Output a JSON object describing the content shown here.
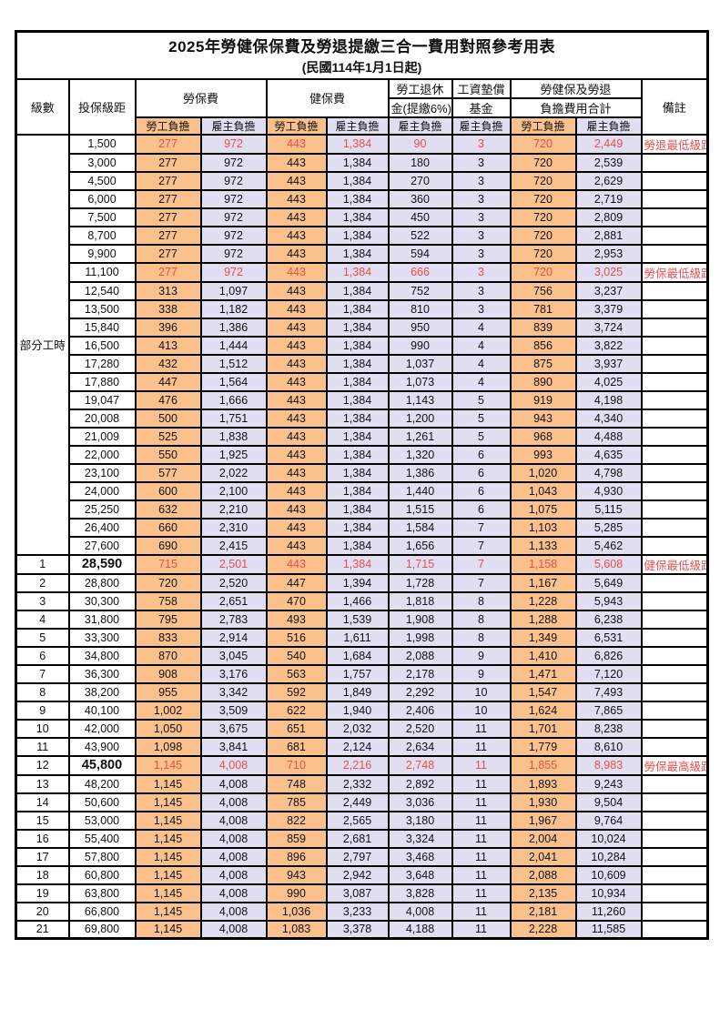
{
  "title": "2025年勞健保保費及勞退提繳三合一費用對照參考用表",
  "subtitle": "(民國114年1月1日起)",
  "header": {
    "level": "級數",
    "bracket": "投保級距",
    "labor_ins": "勞保費",
    "health_ins": "健保費",
    "pension_line1": "勞工退休",
    "pension_line2": "金(提繳6%)",
    "wage_fund_line1": "工資墊償",
    "wage_fund_line2": "基金",
    "total_line1": "勞健保及勞退",
    "total_line2": "負擔費用合計",
    "remark": "備註",
    "employee_share": "勞工負擔",
    "employer_share": "雇主負擔"
  },
  "part_time_label": "部分工時",
  "colors": {
    "employee_fill": "#fbc18d",
    "employer_fill": "#e2def2",
    "highlight_red": "#e84f49",
    "border": "#000000"
  },
  "rows": [
    {
      "level": "",
      "bracket": "1,500",
      "v": [
        "277",
        "972",
        "443",
        "1,384",
        "90",
        "3",
        "720",
        "2,449"
      ],
      "note": "勞退最低級距",
      "red": true
    },
    {
      "level": "",
      "bracket": "3,000",
      "v": [
        "277",
        "972",
        "443",
        "1,384",
        "180",
        "3",
        "720",
        "2,539"
      ],
      "note": ""
    },
    {
      "level": "",
      "bracket": "4,500",
      "v": [
        "277",
        "972",
        "443",
        "1,384",
        "270",
        "3",
        "720",
        "2,629"
      ],
      "note": ""
    },
    {
      "level": "",
      "bracket": "6,000",
      "v": [
        "277",
        "972",
        "443",
        "1,384",
        "360",
        "3",
        "720",
        "2,719"
      ],
      "note": ""
    },
    {
      "level": "",
      "bracket": "7,500",
      "v": [
        "277",
        "972",
        "443",
        "1,384",
        "450",
        "3",
        "720",
        "2,809"
      ],
      "note": ""
    },
    {
      "level": "",
      "bracket": "8,700",
      "v": [
        "277",
        "972",
        "443",
        "1,384",
        "522",
        "3",
        "720",
        "2,881"
      ],
      "note": ""
    },
    {
      "level": "",
      "bracket": "9,900",
      "v": [
        "277",
        "972",
        "443",
        "1,384",
        "594",
        "3",
        "720",
        "2,953"
      ],
      "note": ""
    },
    {
      "level": "",
      "bracket": "11,100",
      "v": [
        "277",
        "972",
        "443",
        "1,384",
        "666",
        "3",
        "720",
        "3,025"
      ],
      "note": "勞保最低級距",
      "red": true
    },
    {
      "level": "",
      "bracket": "12,540",
      "v": [
        "313",
        "1,097",
        "443",
        "1,384",
        "752",
        "3",
        "756",
        "3,237"
      ],
      "note": ""
    },
    {
      "level": "",
      "bracket": "13,500",
      "v": [
        "338",
        "1,182",
        "443",
        "1,384",
        "810",
        "3",
        "781",
        "3,379"
      ],
      "note": ""
    },
    {
      "level": "",
      "bracket": "15,840",
      "v": [
        "396",
        "1,386",
        "443",
        "1,384",
        "950",
        "4",
        "839",
        "3,724"
      ],
      "note": ""
    },
    {
      "level": "",
      "bracket": "16,500",
      "v": [
        "413",
        "1,444",
        "443",
        "1,384",
        "990",
        "4",
        "856",
        "3,822"
      ],
      "note": ""
    },
    {
      "level": "",
      "bracket": "17,280",
      "v": [
        "432",
        "1,512",
        "443",
        "1,384",
        "1,037",
        "4",
        "875",
        "3,937"
      ],
      "note": ""
    },
    {
      "level": "",
      "bracket": "17,880",
      "v": [
        "447",
        "1,564",
        "443",
        "1,384",
        "1,073",
        "4",
        "890",
        "4,025"
      ],
      "note": ""
    },
    {
      "level": "",
      "bracket": "19,047",
      "v": [
        "476",
        "1,666",
        "443",
        "1,384",
        "1,143",
        "5",
        "919",
        "4,198"
      ],
      "note": ""
    },
    {
      "level": "",
      "bracket": "20,008",
      "v": [
        "500",
        "1,751",
        "443",
        "1,384",
        "1,200",
        "5",
        "943",
        "4,340"
      ],
      "note": ""
    },
    {
      "level": "",
      "bracket": "21,009",
      "v": [
        "525",
        "1,838",
        "443",
        "1,384",
        "1,261",
        "5",
        "968",
        "4,488"
      ],
      "note": ""
    },
    {
      "level": "",
      "bracket": "22,000",
      "v": [
        "550",
        "1,925",
        "443",
        "1,384",
        "1,320",
        "6",
        "993",
        "4,635"
      ],
      "note": ""
    },
    {
      "level": "",
      "bracket": "23,100",
      "v": [
        "577",
        "2,022",
        "443",
        "1,384",
        "1,386",
        "6",
        "1,020",
        "4,798"
      ],
      "note": ""
    },
    {
      "level": "",
      "bracket": "24,000",
      "v": [
        "600",
        "2,100",
        "443",
        "1,384",
        "1,440",
        "6",
        "1,043",
        "4,930"
      ],
      "note": ""
    },
    {
      "level": "",
      "bracket": "25,250",
      "v": [
        "632",
        "2,210",
        "443",
        "1,384",
        "1,515",
        "6",
        "1,075",
        "5,115"
      ],
      "note": ""
    },
    {
      "level": "",
      "bracket": "26,400",
      "v": [
        "660",
        "2,310",
        "443",
        "1,384",
        "1,584",
        "7",
        "1,103",
        "5,285"
      ],
      "note": ""
    },
    {
      "level": "",
      "bracket": "27,600",
      "v": [
        "690",
        "2,415",
        "443",
        "1,384",
        "1,656",
        "7",
        "1,133",
        "5,462"
      ],
      "note": ""
    },
    {
      "level": "1",
      "bracket": "28,590",
      "v": [
        "715",
        "2,501",
        "443",
        "1,384",
        "1,715",
        "7",
        "1,158",
        "5,608"
      ],
      "note": "健保最低級距",
      "red": true,
      "bold": true
    },
    {
      "level": "2",
      "bracket": "28,800",
      "v": [
        "720",
        "2,520",
        "447",
        "1,394",
        "1,728",
        "7",
        "1,167",
        "5,649"
      ],
      "note": ""
    },
    {
      "level": "3",
      "bracket": "30,300",
      "v": [
        "758",
        "2,651",
        "470",
        "1,466",
        "1,818",
        "8",
        "1,228",
        "5,943"
      ],
      "note": ""
    },
    {
      "level": "4",
      "bracket": "31,800",
      "v": [
        "795",
        "2,783",
        "493",
        "1,539",
        "1,908",
        "8",
        "1,288",
        "6,238"
      ],
      "note": ""
    },
    {
      "level": "5",
      "bracket": "33,300",
      "v": [
        "833",
        "2,914",
        "516",
        "1,611",
        "1,998",
        "8",
        "1,349",
        "6,531"
      ],
      "note": ""
    },
    {
      "level": "6",
      "bracket": "34,800",
      "v": [
        "870",
        "3,045",
        "540",
        "1,684",
        "2,088",
        "9",
        "1,410",
        "6,826"
      ],
      "note": ""
    },
    {
      "level": "7",
      "bracket": "36,300",
      "v": [
        "908",
        "3,176",
        "563",
        "1,757",
        "2,178",
        "9",
        "1,471",
        "7,120"
      ],
      "note": ""
    },
    {
      "level": "8",
      "bracket": "38,200",
      "v": [
        "955",
        "3,342",
        "592",
        "1,849",
        "2,292",
        "10",
        "1,547",
        "7,493"
      ],
      "note": ""
    },
    {
      "level": "9",
      "bracket": "40,100",
      "v": [
        "1,002",
        "3,509",
        "622",
        "1,940",
        "2,406",
        "10",
        "1,624",
        "7,865"
      ],
      "note": ""
    },
    {
      "level": "10",
      "bracket": "42,000",
      "v": [
        "1,050",
        "3,675",
        "651",
        "2,032",
        "2,520",
        "11",
        "1,701",
        "8,238"
      ],
      "note": ""
    },
    {
      "level": "11",
      "bracket": "43,900",
      "v": [
        "1,098",
        "3,841",
        "681",
        "2,124",
        "2,634",
        "11",
        "1,779",
        "8,610"
      ],
      "note": ""
    },
    {
      "level": "12",
      "bracket": "45,800",
      "v": [
        "1,145",
        "4,008",
        "710",
        "2,216",
        "2,748",
        "11",
        "1,855",
        "8,983"
      ],
      "note": "勞保最高級距",
      "red": true,
      "bold": true
    },
    {
      "level": "13",
      "bracket": "48,200",
      "v": [
        "1,145",
        "4,008",
        "748",
        "2,332",
        "2,892",
        "11",
        "1,893",
        "9,243"
      ],
      "note": ""
    },
    {
      "level": "14",
      "bracket": "50,600",
      "v": [
        "1,145",
        "4,008",
        "785",
        "2,449",
        "3,036",
        "11",
        "1,930",
        "9,504"
      ],
      "note": ""
    },
    {
      "level": "15",
      "bracket": "53,000",
      "v": [
        "1,145",
        "4,008",
        "822",
        "2,565",
        "3,180",
        "11",
        "1,967",
        "9,764"
      ],
      "note": ""
    },
    {
      "level": "16",
      "bracket": "55,400",
      "v": [
        "1,145",
        "4,008",
        "859",
        "2,681",
        "3,324",
        "11",
        "2,004",
        "10,024"
      ],
      "note": ""
    },
    {
      "level": "17",
      "bracket": "57,800",
      "v": [
        "1,145",
        "4,008",
        "896",
        "2,797",
        "3,468",
        "11",
        "2,041",
        "10,284"
      ],
      "note": ""
    },
    {
      "level": "18",
      "bracket": "60,800",
      "v": [
        "1,145",
        "4,008",
        "943",
        "2,942",
        "3,648",
        "11",
        "2,088",
        "10,609"
      ],
      "note": ""
    },
    {
      "level": "19",
      "bracket": "63,800",
      "v": [
        "1,145",
        "4,008",
        "990",
        "3,087",
        "3,828",
        "11",
        "2,135",
        "10,934"
      ],
      "note": ""
    },
    {
      "level": "20",
      "bracket": "66,800",
      "v": [
        "1,145",
        "4,008",
        "1,036",
        "3,233",
        "4,008",
        "11",
        "2,181",
        "11,260"
      ],
      "note": ""
    },
    {
      "level": "21",
      "bracket": "69,800",
      "v": [
        "1,145",
        "4,008",
        "1,083",
        "3,378",
        "4,188",
        "11",
        "2,228",
        "11,585"
      ],
      "note": ""
    }
  ],
  "part_time_row_span": 23,
  "value_column_kinds": [
    "emp",
    "er",
    "emp",
    "er",
    "er",
    "er",
    "emp",
    "er"
  ],
  "value_column_names": [
    "labor-employee",
    "labor-employer",
    "health-employee",
    "health-employer",
    "pension-employer",
    "wagefund-employer",
    "total-employee",
    "total-employer"
  ]
}
